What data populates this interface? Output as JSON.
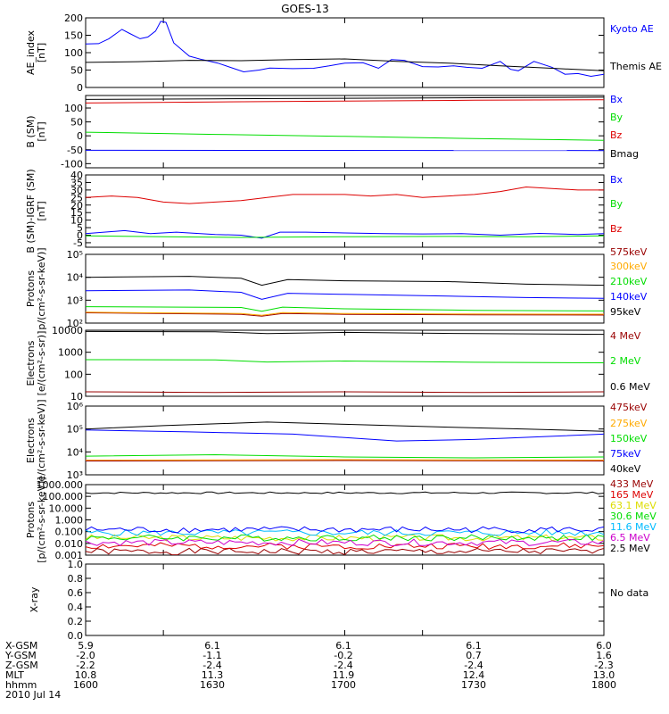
{
  "title": "GOES-13",
  "colors": {
    "black": "#000000",
    "blue": "#0000ff",
    "green": "#00dd00",
    "red": "#dd0000",
    "orange": "#ffaa00",
    "darkred": "#990000",
    "yellow": "#dddd00",
    "cyan": "#00bbff",
    "purple": "#cc00cc"
  },
  "chart_data": [
    {
      "type": "line",
      "ylabel": [
        "AE_index",
        "[nT]"
      ],
      "ylim": [
        0,
        200
      ],
      "yticks": [
        0,
        50,
        100,
        150,
        200
      ],
      "xlim": [
        1600,
        1800
      ],
      "grid": false,
      "legend_placement": "right",
      "series": [
        {
          "name": "Kyoto AE",
          "color": "blue",
          "x": [
            1600,
            1605,
            1609,
            1614,
            1617,
            1621,
            1624,
            1627,
            1629,
            1631,
            1634,
            1640,
            1645,
            1651,
            1655,
            1661,
            1667,
            1671,
            1680,
            1688,
            1694,
            1700,
            1707,
            1713,
            1718,
            1723,
            1730,
            1736,
            1742,
            1747,
            1753,
            1760,
            1764,
            1767,
            1773,
            1780,
            1785,
            1790,
            1795,
            1800
          ],
          "values": [
            125,
            126,
            140,
            167,
            155,
            140,
            145,
            162,
            190,
            187,
            128,
            90,
            80,
            70,
            60,
            45,
            50,
            56,
            54,
            55,
            62,
            70,
            71,
            55,
            80,
            78,
            60,
            59,
            62,
            58,
            55,
            75,
            52,
            48,
            75,
            58,
            38,
            40,
            32,
            38
          ]
        },
        {
          "name": "Themis AE",
          "color": "black",
          "x": [
            1600,
            1620,
            1640,
            1660,
            1680,
            1700,
            1720,
            1740,
            1760,
            1780,
            1800
          ],
          "values": [
            72,
            74,
            78,
            77,
            80,
            82,
            75,
            70,
            62,
            55,
            48
          ]
        }
      ]
    },
    {
      "type": "line",
      "ylabel": [
        "B (SM)",
        "[nT]"
      ],
      "ylim": [
        -115,
        145
      ],
      "yticks": [
        -100,
        -50,
        0,
        50,
        100
      ],
      "xlim": [
        1600,
        1800
      ],
      "legend_placement": "right",
      "series": [
        {
          "name": "Bx",
          "color": "blue",
          "x": [
            1600,
            1800
          ],
          "values": [
            -52,
            -53
          ]
        },
        {
          "name": "By",
          "color": "green",
          "x": [
            1600,
            1650,
            1700,
            1750,
            1800
          ],
          "values": [
            13,
            5,
            -2,
            -10,
            -16
          ]
        },
        {
          "name": "Bz",
          "color": "red",
          "x": [
            1600,
            1650,
            1700,
            1750,
            1800
          ],
          "values": [
            118,
            122,
            125,
            128,
            130
          ]
        },
        {
          "name": "Bmag",
          "color": "black",
          "x": [
            1600,
            1650,
            1700,
            1750,
            1800
          ],
          "values": [
            131,
            133,
            135,
            137,
            139
          ]
        }
      ]
    },
    {
      "type": "line",
      "ylabel": [
        "B (SM)-IGRF (SM)",
        "[nT]"
      ],
      "ylim": [
        -8,
        40
      ],
      "yticks": [
        -5,
        0,
        5,
        10,
        15,
        20,
        25,
        30,
        35,
        40
      ],
      "xlim": [
        1600,
        1800
      ],
      "legend_placement": "right",
      "series": [
        {
          "name": "Bx",
          "color": "blue",
          "x": [
            1600,
            1615,
            1625,
            1635,
            1650,
            1660,
            1668,
            1675,
            1685,
            1700,
            1715,
            1730,
            1745,
            1760,
            1775,
            1790,
            1800
          ],
          "values": [
            1,
            3,
            1,
            2,
            0.5,
            0,
            -2,
            2,
            2,
            1.5,
            1,
            0.8,
            1,
            0,
            1.2,
            0.5,
            1
          ]
        },
        {
          "name": "By",
          "color": "green",
          "x": [
            1600,
            1630,
            1660,
            1700,
            1740,
            1770,
            1800
          ],
          "values": [
            -0.5,
            -1,
            -1.5,
            -1,
            -0.8,
            -1,
            -0.5
          ]
        },
        {
          "name": "Bz",
          "color": "red",
          "x": [
            1600,
            1610,
            1620,
            1630,
            1640,
            1650,
            1660,
            1670,
            1680,
            1690,
            1700,
            1710,
            1720,
            1730,
            1740,
            1750,
            1760,
            1770,
            1780,
            1790,
            1800
          ],
          "values": [
            25,
            26,
            25,
            22,
            21,
            22,
            23,
            25,
            27,
            27,
            27,
            26,
            27,
            25,
            26,
            27,
            29,
            32,
            31,
            30,
            30
          ]
        }
      ]
    },
    {
      "type": "line",
      "ylabel": [
        "Protons",
        "p/(cm²-s-sr-keV)]"
      ],
      "yscale": "log",
      "ylim": [
        100,
        100000
      ],
      "ytick_labels": [
        "10²",
        "10³",
        "10⁴",
        "10⁵"
      ],
      "xlim": [
        1600,
        1800
      ],
      "legend_placement": "right",
      "series": [
        {
          "name": "575keV",
          "color": "darkred",
          "x": [
            1600,
            1660,
            1668,
            1676,
            1700,
            1750,
            1800
          ],
          "values": [
            280,
            240,
            200,
            260,
            240,
            230,
            225
          ]
        },
        {
          "name": "300keV",
          "color": "orange",
          "x": [
            1600,
            1660,
            1668,
            1676,
            1700,
            1750,
            1800
          ],
          "values": [
            300,
            260,
            220,
            285,
            260,
            250,
            245
          ]
        },
        {
          "name": "210keV",
          "color": "green",
          "x": [
            1600,
            1660,
            1668,
            1676,
            1700,
            1750,
            1800
          ],
          "values": [
            520,
            480,
            330,
            500,
            420,
            360,
            340
          ]
        },
        {
          "name": "140keV",
          "color": "blue",
          "x": [
            1600,
            1640,
            1660,
            1668,
            1678,
            1700,
            1740,
            1770,
            1800
          ],
          "values": [
            2600,
            2800,
            2200,
            1100,
            2000,
            1800,
            1500,
            1300,
            1200
          ]
        },
        {
          "name": "95keV",
          "color": "black",
          "x": [
            1600,
            1640,
            1660,
            1668,
            1678,
            1700,
            1740,
            1770,
            1800
          ],
          "values": [
            10000,
            11000,
            9000,
            4500,
            8000,
            7000,
            6500,
            5000,
            4500
          ]
        }
      ]
    },
    {
      "type": "line",
      "ylabel": [
        "Electrons",
        "[e/(cm²-s-sr)]"
      ],
      "yscale": "log",
      "ylim": [
        10,
        10000
      ],
      "ytick_labels": [
        "10",
        "100",
        "1000",
        "10000"
      ],
      "xlim": [
        1600,
        1800
      ],
      "legend_placement": "right",
      "series": [
        {
          "name": "4 MeV",
          "color": "darkred",
          "x": [
            1600,
            1650,
            1700,
            1750,
            1800
          ],
          "values": [
            16,
            15,
            16,
            15,
            16
          ]
        },
        {
          "name": "2 MeV",
          "color": "green",
          "x": [
            1600,
            1650,
            1670,
            1700,
            1750,
            1800
          ],
          "values": [
            460,
            450,
            360,
            400,
            350,
            330
          ]
        },
        {
          "name": "0.6 MeV",
          "color": "black",
          "x": [
            1600,
            1650,
            1670,
            1700,
            1750,
            1800
          ],
          "values": [
            8800,
            8500,
            7000,
            8000,
            7000,
            6500
          ]
        }
      ]
    },
    {
      "type": "line",
      "ylabel": [
        "Electrons",
        "e/(cm²-s-sr-keV)]"
      ],
      "yscale": "log",
      "ylim": [
        1000,
        1000000
      ],
      "ytick_labels": [
        "10³",
        "10⁴",
        "10⁵",
        "10⁶"
      ],
      "xlim": [
        1600,
        1800
      ],
      "legend_placement": "right",
      "series": [
        {
          "name": "475keV",
          "color": "darkred",
          "x": [
            1600,
            1700,
            1800
          ],
          "values": [
            4000,
            4200,
            4000
          ]
        },
        {
          "name": "275keV",
          "color": "orange",
          "x": [
            1600,
            1700,
            1800
          ],
          "values": [
            4400,
            4600,
            4400
          ]
        },
        {
          "name": "150keV",
          "color": "green",
          "x": [
            1600,
            1650,
            1700,
            1750,
            1800
          ],
          "values": [
            6500,
            7500,
            6000,
            5500,
            6000
          ]
        },
        {
          "name": "75keV",
          "color": "blue",
          "x": [
            1600,
            1640,
            1680,
            1720,
            1750,
            1800
          ],
          "values": [
            90000,
            75000,
            60000,
            30000,
            35000,
            60000
          ]
        },
        {
          "name": "40keV",
          "color": "black",
          "x": [
            1600,
            1630,
            1670,
            1700,
            1740,
            1770,
            1800
          ],
          "values": [
            100000,
            140000,
            200000,
            160000,
            120000,
            100000,
            80000
          ]
        }
      ]
    },
    {
      "type": "line",
      "ylabel": [
        "Protons",
        "[p/(cm²-s-sr-keV)]"
      ],
      "yscale": "log",
      "ylim": [
        0.001,
        1000
      ],
      "ytick_labels": [
        "0.001",
        "0.010",
        "0.100",
        "1.000",
        "10.000",
        "100.000",
        "1000.000"
      ],
      "xlim": [
        1600,
        1800
      ],
      "legend_placement": "right",
      "series": [
        {
          "name": "433 MeV",
          "color": "darkred",
          "base": 0.002
        },
        {
          "name": "165 MeV",
          "color": "red",
          "base": 0.006
        },
        {
          "name": "63.1 MeV",
          "color": "yellow",
          "base": 0.03
        },
        {
          "name": "30.6 MeV",
          "color": "green",
          "base": 0.03
        },
        {
          "name": "11.6 MeV",
          "color": "cyan",
          "base": 0.08
        },
        {
          "name": "6.5 MeV",
          "color": "purple",
          "base": 0.012
        },
        {
          "name": "2.5 MeV",
          "color": "black",
          "base": 200
        },
        {
          "name": "",
          "color": "blue",
          "base": 0.15
        }
      ]
    },
    {
      "type": "line",
      "ylabel": [
        "X-ray"
      ],
      "ylim": [
        0,
        1
      ],
      "yticks": [
        "0.0",
        "0.2",
        "0.4",
        "0.6",
        "0.8",
        "1.0"
      ],
      "xlim": [
        1600,
        1800
      ],
      "legend_placement": "right",
      "note": "No data",
      "series": []
    }
  ],
  "x_axis": {
    "rows": [
      {
        "label": "X-GSM",
        "values": [
          "5.9",
          "6.1",
          "6.1",
          "6.1",
          "6.0"
        ]
      },
      {
        "label": "Y-GSM",
        "values": [
          "-2.0",
          "-1.1",
          "-0.2",
          "0.7",
          "1.6"
        ]
      },
      {
        "label": "Z-GSM",
        "values": [
          "-2.2",
          "-2.4",
          "-2.4",
          "-2.4",
          "-2.3"
        ]
      },
      {
        "label": "MLT",
        "values": [
          "10.8",
          "11.3",
          "11.9",
          "12.4",
          "13.0"
        ]
      },
      {
        "label": "hhmm",
        "values": [
          "1600",
          "1630",
          "1700",
          "1730",
          "1800"
        ]
      }
    ],
    "date": "2010 Jul 14"
  }
}
